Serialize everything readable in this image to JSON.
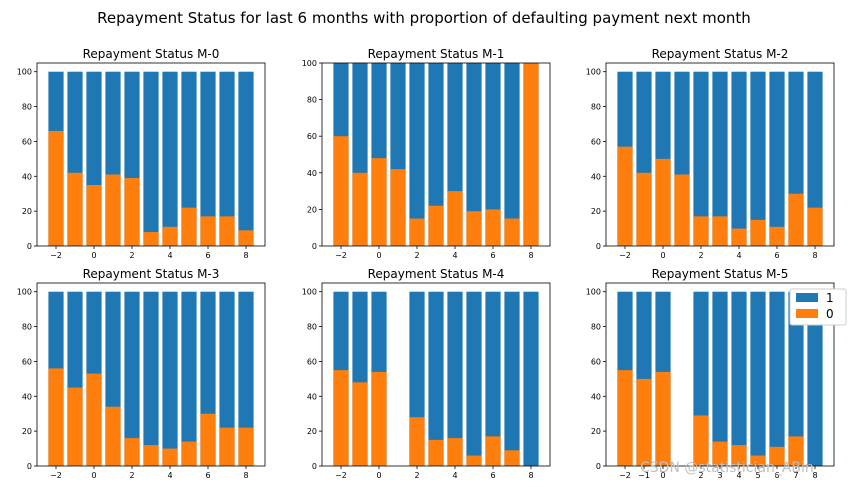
{
  "title": "Repayment Status for last 6 months with proportion of defaulting payment next month",
  "watermark": "CSDN @statistician_ABin",
  "colors": {
    "series_1": "#1f77b4",
    "series_0": "#ff7f0e"
  },
  "legend": {
    "entries": [
      "1",
      "0"
    ],
    "placement": "upper-right of last panel"
  },
  "chart_data": [
    {
      "type": "bar",
      "stacked": "overlay",
      "title": "Repayment Status M-0",
      "categories": [
        -2,
        -1,
        0,
        1,
        2,
        3,
        4,
        5,
        6,
        7,
        8
      ],
      "series": [
        {
          "name": "1",
          "values": [
            100,
            100,
            100,
            100,
            100,
            100,
            100,
            100,
            100,
            100,
            100
          ]
        },
        {
          "name": "0",
          "values": [
            66,
            42,
            35,
            41,
            39,
            8,
            11,
            22,
            17,
            17,
            9
          ]
        }
      ],
      "xticks": [
        -2,
        0,
        2,
        4,
        6,
        8
      ],
      "xlim": [
        -3,
        9
      ],
      "yticks": [
        0,
        20,
        40,
        60,
        80,
        100
      ],
      "ylim": [
        0,
        105
      ]
    },
    {
      "type": "bar",
      "stacked": "overlay",
      "title": "Repayment Status M-1",
      "categories": [
        -2,
        -1,
        0,
        1,
        2,
        3,
        4,
        5,
        6,
        7,
        8
      ],
      "series": [
        {
          "name": "1",
          "values": [
            100,
            100,
            100,
            100,
            100,
            100,
            100,
            100,
            100,
            100,
            100
          ]
        },
        {
          "name": "0",
          "values": [
            60,
            40,
            48,
            42,
            15,
            22,
            30,
            19,
            20,
            15,
            100
          ]
        }
      ],
      "xticks": [
        -2,
        0,
        2,
        4,
        6,
        8
      ],
      "xlim": [
        -3,
        9
      ],
      "yticks": [
        0,
        20,
        40,
        60,
        80,
        100
      ],
      "ylim": [
        0,
        100
      ]
    },
    {
      "type": "bar",
      "stacked": "overlay",
      "title": "Repayment Status M-2",
      "categories": [
        -2,
        -1,
        0,
        1,
        2,
        3,
        4,
        5,
        6,
        7,
        8
      ],
      "series": [
        {
          "name": "1",
          "values": [
            100,
            100,
            100,
            100,
            100,
            100,
            100,
            100,
            100,
            100,
            100
          ]
        },
        {
          "name": "0",
          "values": [
            57,
            42,
            50,
            41,
            17,
            17,
            10,
            15,
            11,
            30,
            22
          ]
        }
      ],
      "xticks": [
        -2,
        0,
        2,
        4,
        6,
        8
      ],
      "xlim": [
        -3,
        9
      ],
      "yticks": [
        0,
        20,
        40,
        60,
        80,
        100
      ],
      "ylim": [
        0,
        105
      ]
    },
    {
      "type": "bar",
      "stacked": "overlay",
      "title": "Repayment Status M-3",
      "categories": [
        -2,
        -1,
        0,
        1,
        2,
        3,
        4,
        5,
        6,
        7,
        8
      ],
      "series": [
        {
          "name": "1",
          "values": [
            100,
            100,
            100,
            100,
            100,
            100,
            100,
            100,
            100,
            100,
            100
          ]
        },
        {
          "name": "0",
          "values": [
            56,
            45,
            53,
            34,
            16,
            12,
            10,
            14,
            30,
            22,
            22
          ]
        }
      ],
      "xticks": [
        -2,
        0,
        2,
        4,
        6,
        8
      ],
      "xlim": [
        -3,
        9
      ],
      "yticks": [
        0,
        20,
        40,
        60,
        80,
        100
      ],
      "ylim": [
        0,
        105
      ]
    },
    {
      "type": "bar",
      "stacked": "overlay",
      "title": "Repayment Status M-4",
      "categories": [
        -2,
        -1,
        0,
        2,
        3,
        4,
        5,
        6,
        7,
        8
      ],
      "series": [
        {
          "name": "1",
          "values": [
            100,
            100,
            100,
            100,
            100,
            100,
            100,
            100,
            100,
            100
          ]
        },
        {
          "name": "0",
          "values": [
            55,
            48,
            54,
            28,
            15,
            16,
            6,
            17,
            9,
            0
          ]
        }
      ],
      "xticks": [
        -2,
        0,
        2,
        4,
        6,
        8
      ],
      "xlim": [
        -3,
        9
      ],
      "yticks": [
        0,
        20,
        40,
        60,
        80,
        100
      ],
      "ylim": [
        0,
        105
      ]
    },
    {
      "type": "bar",
      "stacked": "overlay",
      "title": "Repayment Status M-5",
      "categories": [
        -2,
        -1,
        0,
        2,
        3,
        4,
        5,
        6,
        7,
        8
      ],
      "series": [
        {
          "name": "1",
          "values": [
            100,
            100,
            100,
            100,
            100,
            100,
            100,
            100,
            100,
            100
          ]
        },
        {
          "name": "0",
          "values": [
            55,
            50,
            54,
            29,
            14,
            12,
            6,
            11,
            17,
            0
          ]
        }
      ],
      "xticks": [
        -2,
        -1,
        0,
        2,
        3,
        4,
        5,
        6,
        7,
        8
      ],
      "xlim": [
        -3,
        9
      ],
      "yticks": [
        0,
        20,
        40,
        60,
        80,
        100
      ],
      "ylim": [
        0,
        105
      ]
    }
  ]
}
